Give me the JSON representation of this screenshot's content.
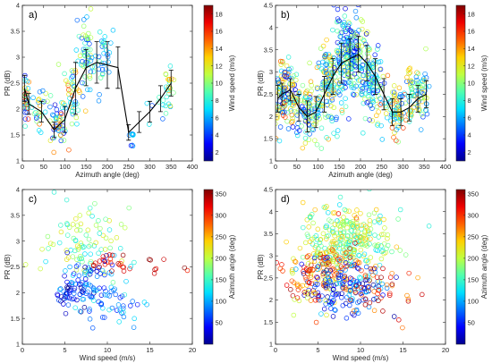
{
  "colormap": [
    "#00008f",
    "#0000ff",
    "#0070ff",
    "#00dfff",
    "#50ffaf",
    "#bfff40",
    "#ffd000",
    "#ff6000",
    "#f00000",
    "#800000"
  ],
  "chart_data": [
    {
      "type": "scatter",
      "panel_label": "a)",
      "xlabel": "Azimuth angle (deg)",
      "ylabel": "PR (dB)",
      "xlim": [
        0,
        400
      ],
      "ylim": [
        1,
        4
      ],
      "xticks": [
        0,
        50,
        100,
        150,
        200,
        250,
        300,
        350,
        400
      ],
      "yticks": [
        1,
        1.5,
        2,
        2.5,
        3,
        3.5,
        4
      ],
      "color_by": "wind_speed",
      "colorbar": {
        "label": "Wind speed (m/s)",
        "range": [
          1,
          19
        ],
        "ticks": [
          2,
          4,
          6,
          8,
          10,
          12,
          14,
          16,
          18
        ]
      },
      "cluster_count": 9,
      "clusters": [
        {
          "x": 8,
          "y": 2.2,
          "sx": 5,
          "sy": 0.22,
          "n": 35,
          "c": [
            2,
            18
          ]
        },
        {
          "x": 40,
          "y": 2.0,
          "sx": 10,
          "sy": 0.2,
          "n": 25,
          "c": [
            2,
            15
          ]
        },
        {
          "x": 85,
          "y": 1.7,
          "sx": 12,
          "sy": 0.22,
          "n": 50,
          "c": [
            2,
            16
          ]
        },
        {
          "x": 120,
          "y": 2.4,
          "sx": 10,
          "sy": 0.4,
          "n": 40,
          "c": [
            4,
            16
          ]
        },
        {
          "x": 152,
          "y": 3.1,
          "sx": 9,
          "sy": 0.3,
          "n": 50,
          "c": [
            4,
            12
          ]
        },
        {
          "x": 185,
          "y": 3.0,
          "sx": 13,
          "sy": 0.32,
          "n": 35,
          "c": [
            4,
            10
          ]
        },
        {
          "x": 258,
          "y": 1.5,
          "sx": 3,
          "sy": 0.12,
          "n": 10,
          "c": [
            3,
            8
          ]
        },
        {
          "x": 312,
          "y": 2.0,
          "sx": 14,
          "sy": 0.25,
          "n": 12,
          "c": [
            4,
            10
          ]
        },
        {
          "x": 345,
          "y": 2.4,
          "sx": 6,
          "sy": 0.25,
          "n": 20,
          "c": [
            6,
            16
          ]
        }
      ],
      "mean_line": {
        "x": [
          5,
          15,
          45,
          75,
          100,
          125,
          150,
          175,
          200,
          225,
          250,
          275,
          300,
          325,
          350
        ],
        "y": [
          2.4,
          2.1,
          1.95,
          1.6,
          1.8,
          2.4,
          2.8,
          2.9,
          2.85,
          2.8,
          1.55,
          1.75,
          1.95,
          2.2,
          2.5
        ],
        "err": [
          0.25,
          0.2,
          0.2,
          0.15,
          0.25,
          0.5,
          0.35,
          0.4,
          0.45,
          0.4,
          0.15,
          0.2,
          0.2,
          0.25,
          0.25
        ]
      }
    },
    {
      "type": "scatter",
      "panel_label": "b)",
      "xlabel": "Azimuth angle (deg)",
      "ylabel": "PR (dB)",
      "xlim": [
        0,
        400
      ],
      "ylim": [
        1,
        4.5
      ],
      "xticks": [
        0,
        50,
        100,
        150,
        200,
        250,
        300,
        350,
        400
      ],
      "yticks": [
        1,
        1.5,
        2,
        2.5,
        3,
        3.5,
        4,
        4.5
      ],
      "color_by": "wind_speed",
      "colorbar": {
        "label": "Wind speed (m/s)",
        "range": [
          1,
          19
        ],
        "ticks": [
          2,
          4,
          6,
          8,
          10,
          12,
          14,
          16,
          18
        ]
      },
      "cluster_count": 7,
      "clusters": [
        {
          "x": 20,
          "y": 2.5,
          "sx": 18,
          "sy": 0.35,
          "n": 140,
          "c": [
            2,
            16
          ]
        },
        {
          "x": 75,
          "y": 2.1,
          "sx": 20,
          "sy": 0.35,
          "n": 110,
          "c": [
            2,
            14
          ]
        },
        {
          "x": 125,
          "y": 2.8,
          "sx": 15,
          "sy": 0.45,
          "n": 120,
          "c": [
            4,
            14
          ]
        },
        {
          "x": 175,
          "y": 3.4,
          "sx": 18,
          "sy": 0.45,
          "n": 220,
          "c": [
            2,
            12
          ]
        },
        {
          "x": 225,
          "y": 2.8,
          "sx": 15,
          "sy": 0.4,
          "n": 110,
          "c": [
            3,
            12
          ]
        },
        {
          "x": 285,
          "y": 2.2,
          "sx": 18,
          "sy": 0.3,
          "n": 90,
          "c": [
            4,
            16
          ]
        },
        {
          "x": 335,
          "y": 2.5,
          "sx": 14,
          "sy": 0.3,
          "n": 80,
          "c": [
            4,
            14
          ]
        }
      ],
      "mean_line": {
        "x": [
          5,
          15,
          35,
          55,
          75,
          95,
          115,
          135,
          155,
          175,
          195,
          215,
          235,
          255,
          275,
          295,
          315,
          335,
          355
        ],
        "y": [
          2.4,
          2.5,
          2.6,
          2.2,
          2.0,
          2.1,
          2.5,
          2.9,
          3.2,
          3.3,
          3.4,
          3.2,
          2.9,
          2.5,
          2.1,
          2.1,
          2.2,
          2.4,
          2.5
        ],
        "err": [
          0.3,
          0.25,
          0.25,
          0.3,
          0.35,
          0.35,
          0.4,
          0.4,
          0.45,
          0.45,
          0.4,
          0.4,
          0.4,
          0.35,
          0.3,
          0.3,
          0.3,
          0.3,
          0.3
        ]
      }
    },
    {
      "type": "scatter",
      "panel_label": "c)",
      "xlabel": "Wind speed (m/s)",
      "ylabel": "PR (dB)",
      "xlim": [
        0,
        20
      ],
      "ylim": [
        1,
        4
      ],
      "xticks": [
        0,
        5,
        10,
        15,
        20
      ],
      "yticks": [
        1,
        1.5,
        2,
        2.5,
        3,
        3.5,
        4
      ],
      "color_by": "azimuth_angle",
      "colorbar": {
        "label": "Azimuth angle (deg)",
        "range": [
          0,
          360
        ],
        "ticks": [
          50,
          100,
          150,
          200,
          250,
          300,
          350
        ]
      },
      "cluster_count": 6,
      "clusters": [
        {
          "x": 7,
          "y": 2.95,
          "sx": 2.2,
          "sy": 0.35,
          "n": 90,
          "c": [
            120,
            230
          ]
        },
        {
          "x": 5.2,
          "y": 1.9,
          "sx": 0.6,
          "sy": 0.15,
          "n": 20,
          "c": [
            5,
            80
          ]
        },
        {
          "x": 7.5,
          "y": 2.2,
          "sx": 1.5,
          "sy": 0.3,
          "n": 80,
          "c": [
            0,
            120
          ]
        },
        {
          "x": 11,
          "y": 2.55,
          "sx": 1.5,
          "sy": 0.1,
          "n": 22,
          "c": [
            300,
            360
          ]
        },
        {
          "x": 10.5,
          "y": 1.8,
          "sx": 2.3,
          "sy": 0.25,
          "n": 50,
          "c": [
            40,
            140
          ]
        },
        {
          "x": 15.5,
          "y": 2.5,
          "sx": 1.5,
          "sy": 0.1,
          "n": 8,
          "c": [
            300,
            360
          ]
        }
      ]
    },
    {
      "type": "scatter",
      "panel_label": "d)",
      "xlabel": "Wind speed (m/s)",
      "ylabel": "PR (dB)",
      "xlim": [
        0,
        20
      ],
      "ylim": [
        1,
        4.5
      ],
      "xticks": [
        0,
        5,
        10,
        15,
        20
      ],
      "yticks": [
        1,
        1.5,
        2,
        2.5,
        3,
        3.5,
        4,
        4.5
      ],
      "color_by": "azimuth_angle",
      "colorbar": {
        "label": "Azimuth angle (deg)",
        "range": [
          0,
          360
        ],
        "ticks": [
          50,
          100,
          150,
          200,
          250,
          300,
          350
        ]
      },
      "cluster_count": 5,
      "clusters": [
        {
          "x": 8.5,
          "y": 3.35,
          "sx": 2.5,
          "sy": 0.4,
          "n": 280,
          "c": [
            120,
            250
          ]
        },
        {
          "x": 6.5,
          "y": 2.7,
          "sx": 2.5,
          "sy": 0.35,
          "n": 130,
          "c": [
            200,
            360
          ]
        },
        {
          "x": 8,
          "y": 2.25,
          "sx": 2.5,
          "sy": 0.3,
          "n": 150,
          "c": [
            0,
            120
          ]
        },
        {
          "x": 12.5,
          "y": 2.3,
          "sx": 2.2,
          "sy": 0.3,
          "n": 45,
          "c": [
            250,
            360
          ]
        },
        {
          "x": 3.5,
          "y": 2.4,
          "sx": 1.0,
          "sy": 0.35,
          "n": 40,
          "c": [
            200,
            330
          ]
        }
      ]
    }
  ]
}
